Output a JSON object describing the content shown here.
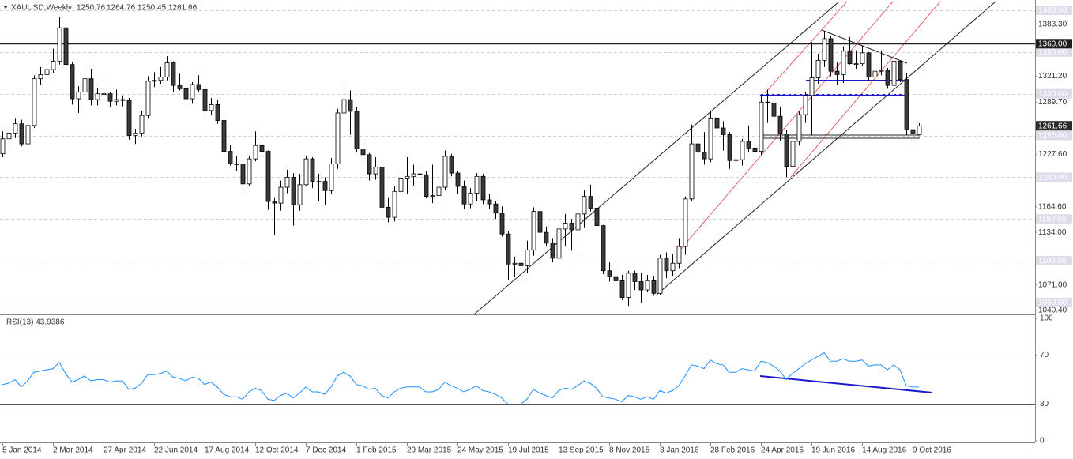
{
  "chart_data": [
    {
      "type": "candlestick",
      "title": "XAUUSD,Weekly",
      "categories": [
        "5 Jan 2014",
        null,
        null,
        null,
        null,
        null,
        null,
        null,
        "2 Mar 2014",
        null,
        null,
        null,
        null,
        null,
        null,
        null,
        "27 Apr 2014",
        null,
        null,
        null,
        null,
        null,
        null,
        null,
        "22 Jun 2014",
        null,
        null,
        null,
        null,
        null,
        null,
        null,
        "17 Aug 2014",
        null,
        null,
        null,
        null,
        null,
        null,
        null,
        "12 Oct 2014",
        null,
        null,
        null,
        null,
        null,
        null,
        null,
        "7 Dec 2014",
        null,
        null,
        null,
        null,
        null,
        null,
        null,
        "1 Feb 2015",
        null,
        null,
        null,
        null,
        null,
        null,
        null,
        "29 Mar 2015",
        null,
        null,
        null,
        null,
        null,
        null,
        null,
        "24 May 2015",
        null,
        null,
        null,
        null,
        null,
        null,
        null,
        "19 Jul 2015",
        null,
        null,
        null,
        null,
        null,
        null,
        null,
        "13 Sep 2015",
        null,
        null,
        null,
        null,
        null,
        null,
        null,
        "8 Nov 2015",
        null,
        null,
        null,
        null,
        null,
        null,
        null,
        "3 Jan 2016",
        null,
        null,
        null,
        null,
        null,
        null,
        null,
        "28 Feb 2016",
        null,
        null,
        null,
        null,
        null,
        null,
        null,
        "24 Apr 2016",
        null,
        null,
        null,
        null,
        null,
        null,
        null,
        "19 Jun 2016",
        null,
        null,
        null,
        null,
        null,
        null,
        null,
        "14 Aug 2016",
        null,
        null,
        null,
        null,
        null,
        null,
        null,
        "9 Oct 2016",
        null
      ],
      "open": [
        1228,
        1246,
        1253,
        1264,
        1240,
        1262,
        1318,
        1323,
        1329,
        1339,
        1379,
        1335,
        1294,
        1302,
        1318,
        1293,
        1300,
        1300,
        1291,
        1293,
        1292,
        1250,
        1253,
        1274,
        1315,
        1316,
        1320,
        1337,
        1310,
        1306,
        1294,
        1311,
        1305,
        1280,
        1287,
        1268,
        1231,
        1216,
        1216,
        1192,
        1222,
        1238,
        1231,
        1171,
        1169,
        1188,
        1200,
        1167,
        1191,
        1222,
        1195,
        1195,
        1184,
        1216,
        1277,
        1293,
        1279,
        1234,
        1227,
        1204,
        1212,
        1164,
        1152,
        1183,
        1199,
        1201,
        1204,
        1203,
        1177,
        1178,
        1188,
        1225,
        1205,
        1189,
        1168,
        1181,
        1201,
        1173,
        1168,
        1157,
        1132,
        1096,
        1097,
        1094,
        1113,
        1159,
        1134,
        1121,
        1103,
        1138,
        1145,
        1137,
        1156,
        1177,
        1163,
        1142,
        1088,
        1081,
        1076,
        1056,
        1085,
        1075,
        1065,
        1076,
        1061,
        1103,
        1088,
        1097,
        1117,
        1174,
        1240,
        1230,
        1222,
        1271,
        1259,
        1251,
        1220,
        1221,
        1243,
        1235,
        1231,
        1290,
        1289,
        1273,
        1252,
        1213,
        1243,
        1275,
        1298,
        1319,
        1340,
        1366,
        1327,
        1323,
        1351,
        1336,
        1336,
        1349,
        1320,
        1327,
        1328,
        1310,
        1339,
        1317,
        1257,
        1250.76
      ],
      "high": [
        1255,
        1259,
        1271,
        1269,
        1268,
        1322,
        1332,
        1346,
        1354,
        1392,
        1382,
        1338,
        1309,
        1331,
        1330,
        1307,
        1315,
        1302,
        1305,
        1298,
        1295,
        1258,
        1279,
        1321,
        1326,
        1332,
        1345,
        1339,
        1324,
        1310,
        1314,
        1322,
        1313,
        1295,
        1293,
        1272,
        1239,
        1226,
        1221,
        1225,
        1255,
        1248,
        1232,
        1176,
        1196,
        1209,
        1205,
        1204,
        1226,
        1224,
        1204,
        1200,
        1223,
        1282,
        1307,
        1304,
        1284,
        1241,
        1229,
        1224,
        1218,
        1176,
        1189,
        1205,
        1224,
        1215,
        1209,
        1208,
        1215,
        1196,
        1232,
        1228,
        1208,
        1196,
        1187,
        1205,
        1204,
        1180,
        1172,
        1165,
        1135,
        1105,
        1103,
        1124,
        1164,
        1170,
        1141,
        1127,
        1143,
        1156,
        1150,
        1158,
        1185,
        1191,
        1173,
        1143,
        1098,
        1090,
        1083,
        1088,
        1088,
        1086,
        1083,
        1082,
        1107,
        1110,
        1108,
        1127,
        1177,
        1263,
        1240,
        1254,
        1279,
        1287,
        1267,
        1254,
        1243,
        1246,
        1262,
        1263,
        1298,
        1305,
        1294,
        1284,
        1257,
        1249,
        1279,
        1302,
        1362,
        1348,
        1375,
        1369,
        1338,
        1357,
        1368,
        1352,
        1357,
        1350,
        1331,
        1352,
        1331,
        1343,
        1340,
        1325,
        1268,
        1264.76
      ],
      "low": [
        1224,
        1236,
        1247,
        1237,
        1238,
        1259,
        1311,
        1320,
        1325,
        1335,
        1329,
        1287,
        1277,
        1295,
        1286,
        1286,
        1292,
        1284,
        1286,
        1285,
        1245,
        1240,
        1249,
        1271,
        1308,
        1312,
        1316,
        1302,
        1304,
        1284,
        1288,
        1302,
        1275,
        1274,
        1264,
        1228,
        1214,
        1207,
        1183,
        1189,
        1219,
        1226,
        1161,
        1131,
        1160,
        1181,
        1142,
        1160,
        1190,
        1187,
        1171,
        1167,
        1180,
        1210,
        1276,
        1251,
        1230,
        1216,
        1196,
        1197,
        1161,
        1146,
        1147,
        1180,
        1180,
        1190,
        1183,
        1175,
        1169,
        1170,
        1185,
        1201,
        1180,
        1162,
        1163,
        1172,
        1168,
        1162,
        1150,
        1129,
        1077,
        1080,
        1077,
        1085,
        1106,
        1131,
        1118,
        1098,
        1100,
        1117,
        1112,
        1109,
        1140,
        1159,
        1141,
        1084,
        1075,
        1062,
        1053,
        1046,
        1065,
        1050,
        1063,
        1058,
        1059,
        1079,
        1082,
        1091,
        1107,
        1172,
        1200,
        1215,
        1218,
        1254,
        1232,
        1210,
        1207,
        1214,
        1230,
        1218,
        1227,
        1265,
        1262,
        1244,
        1200,
        1203,
        1238,
        1265,
        1250,
        1312,
        1332,
        1321,
        1310,
        1313,
        1335,
        1330,
        1333,
        1315,
        1302,
        1322,
        1306,
        1309,
        1314,
        1251,
        1241,
        1250.45
      ],
      "close": [
        1246,
        1253,
        1264,
        1240,
        1262,
        1318,
        1323,
        1329,
        1339,
        1379,
        1335,
        1294,
        1302,
        1318,
        1293,
        1300,
        1300,
        1291,
        1293,
        1292,
        1250,
        1253,
        1274,
        1315,
        1316,
        1320,
        1337,
        1310,
        1306,
        1294,
        1311,
        1305,
        1280,
        1287,
        1268,
        1231,
        1216,
        1216,
        1192,
        1222,
        1238,
        1231,
        1171,
        1169,
        1188,
        1200,
        1167,
        1191,
        1222,
        1195,
        1195,
        1184,
        1216,
        1277,
        1293,
        1279,
        1234,
        1227,
        1204,
        1212,
        1164,
        1152,
        1183,
        1199,
        1201,
        1204,
        1203,
        1177,
        1178,
        1188,
        1225,
        1205,
        1189,
        1168,
        1181,
        1201,
        1173,
        1168,
        1157,
        1132,
        1096,
        1097,
        1094,
        1113,
        1159,
        1134,
        1121,
        1103,
        1138,
        1145,
        1137,
        1156,
        1177,
        1163,
        1142,
        1088,
        1081,
        1076,
        1056,
        1085,
        1075,
        1065,
        1076,
        1061,
        1103,
        1088,
        1097,
        1117,
        1174,
        1240,
        1230,
        1222,
        1271,
        1259,
        1251,
        1220,
        1221,
        1243,
        1235,
        1231,
        1290,
        1289,
        1273,
        1252,
        1213,
        1243,
        1275,
        1298,
        1319,
        1340,
        1366,
        1327,
        1323,
        1351,
        1336,
        1336,
        1349,
        1320,
        1327,
        1328,
        1310,
        1339,
        1317,
        1257,
        1252,
        1261.66
      ],
      "colors": {
        "up": "#ffffff",
        "down": "#3a3a3a",
        "outline": "#000000"
      },
      "ylim": [
        1035.7,
        1412.3
      ],
      "yticks": [
        {
          "value": 1383.3,
          "label": "1383.30"
        },
        {
          "value": 1321.2,
          "label": "1321.20"
        },
        {
          "value": 1289.7,
          "label": "1289.70"
        },
        {
          "value": 1227.6,
          "label": "1227.60"
        },
        {
          "value": 1196.1,
          "label": "1196.10"
        },
        {
          "value": 1164.6,
          "label": "1164.60"
        },
        {
          "value": 1134,
          "label": "1134.00"
        },
        {
          "value": 1071,
          "label": "1071.00"
        },
        {
          "value": 1040.4,
          "label": "1040.40"
        }
      ],
      "grid_levels": [
        {
          "value": 1400,
          "label": "1400.00"
        },
        {
          "value": 1350,
          "label": "1350.00"
        },
        {
          "value": 1300,
          "label": "1300.00"
        },
        {
          "value": 1250,
          "label": "1250.00"
        },
        {
          "value": 1200,
          "label": "1200.00"
        },
        {
          "value": 1150,
          "label": "1150.00"
        },
        {
          "value": 1100,
          "label": "1100.00"
        },
        {
          "value": 1050,
          "label": "1050.00"
        }
      ],
      "hline": {
        "value": 1360,
        "label": "1360.00"
      },
      "last_price": 1261.66,
      "grid": true
    },
    {
      "type": "line",
      "title": "RSI(13) 43.9386",
      "color": "#1e90ff",
      "values": [
        46,
        47,
        50,
        44,
        49,
        56,
        57,
        58,
        59,
        64,
        55,
        48,
        50,
        53,
        49,
        50,
        50,
        48,
        49,
        49,
        42,
        43,
        47,
        54,
        54,
        55,
        57,
        52,
        51,
        49,
        52,
        51,
        46,
        48,
        44,
        38,
        36,
        36,
        34,
        40,
        43,
        41,
        34,
        33,
        37,
        39,
        35,
        39,
        44,
        40,
        40,
        38,
        44,
        53,
        56,
        53,
        46,
        45,
        42,
        43,
        37,
        35,
        40,
        43,
        44,
        44,
        44,
        40,
        40,
        42,
        48,
        45,
        43,
        40,
        42,
        45,
        41,
        40,
        38,
        35,
        30,
        30,
        30,
        34,
        42,
        39,
        37,
        35,
        41,
        43,
        42,
        45,
        49,
        47,
        43,
        36,
        35,
        34,
        32,
        37,
        36,
        34,
        36,
        34,
        41,
        39,
        41,
        45,
        53,
        62,
        61,
        59,
        66,
        63,
        62,
        56,
        56,
        59,
        58,
        57,
        65,
        64,
        61,
        57,
        50,
        55,
        59,
        63,
        66,
        69,
        72,
        65,
        65,
        67,
        65,
        65,
        66,
        61,
        62,
        62,
        58,
        62,
        58,
        45,
        44,
        43.9386
      ],
      "ylim": [
        0,
        100
      ],
      "yticks": [
        0,
        30,
        70,
        100
      ],
      "levels": [
        30,
        70
      ]
    }
  ]
}
